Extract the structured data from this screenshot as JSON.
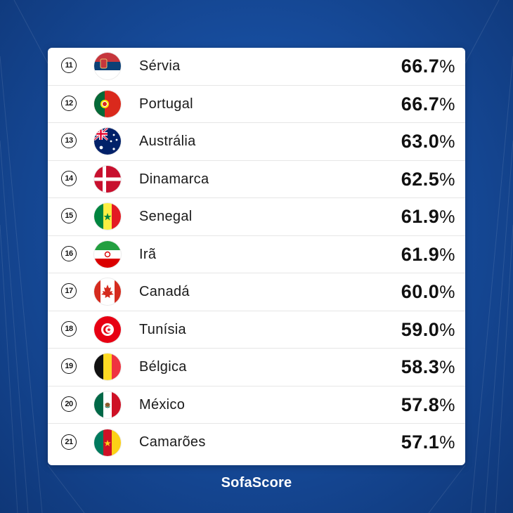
{
  "brand": {
    "logo_text": "SofaScore"
  },
  "rows": [
    {
      "rank": "11",
      "country": "Sérvia",
      "flag": "serbia-flag-icon",
      "value": "66.7",
      "unit": "%"
    },
    {
      "rank": "12",
      "country": "Portugal",
      "flag": "portugal-flag-icon",
      "value": "66.7",
      "unit": "%"
    },
    {
      "rank": "13",
      "country": "Austrália",
      "flag": "australia-flag-icon",
      "value": "63.0",
      "unit": "%"
    },
    {
      "rank": "14",
      "country": "Dinamarca",
      "flag": "denmark-flag-icon",
      "value": "62.5",
      "unit": "%"
    },
    {
      "rank": "15",
      "country": "Senegal",
      "flag": "senegal-flag-icon",
      "value": "61.9",
      "unit": "%"
    },
    {
      "rank": "16",
      "country": "Irã",
      "flag": "iran-flag-icon",
      "value": "61.9",
      "unit": "%"
    },
    {
      "rank": "17",
      "country": "Canadá",
      "flag": "canada-flag-icon",
      "value": "60.0",
      "unit": "%"
    },
    {
      "rank": "18",
      "country": "Tunísia",
      "flag": "tunisia-flag-icon",
      "value": "59.0",
      "unit": "%"
    },
    {
      "rank": "19",
      "country": "Bélgica",
      "flag": "belgium-flag-icon",
      "value": "58.3",
      "unit": "%"
    },
    {
      "rank": "20",
      "country": "México",
      "flag": "mexico-flag-icon",
      "value": "57.8",
      "unit": "%"
    },
    {
      "rank": "21",
      "country": "Camarões",
      "flag": "cameroon-flag-icon",
      "value": "57.1",
      "unit": "%"
    }
  ],
  "colors": {
    "background": "#174d9e",
    "card": "#ffffff",
    "text": "#111111"
  }
}
